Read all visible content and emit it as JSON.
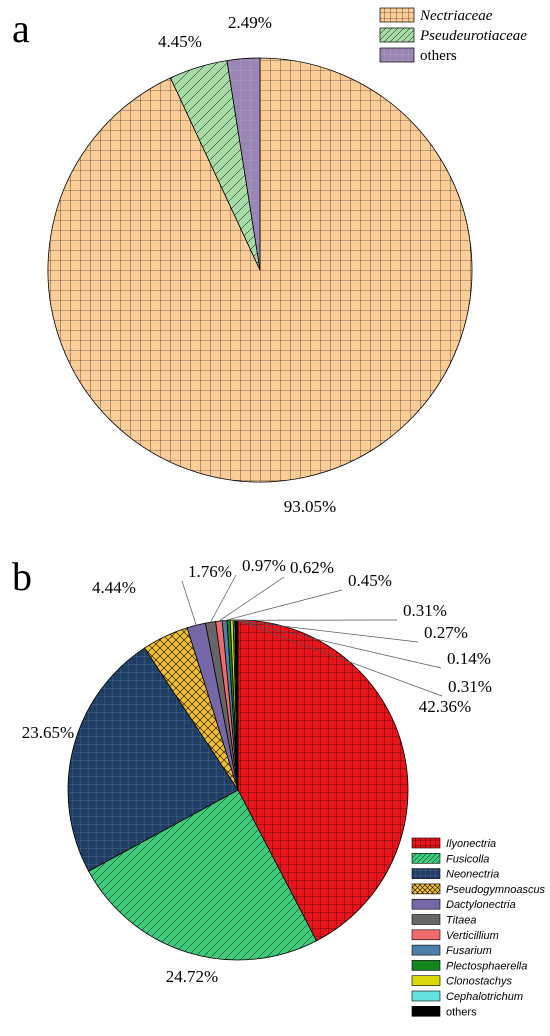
{
  "panels": {
    "a": {
      "letter": "a"
    },
    "b": {
      "letter": "b"
    }
  },
  "chart_data": [
    {
      "type": "pie",
      "panel": "a",
      "title": "",
      "start": "12 o'clock, clockwise",
      "legend_placement": "top-right",
      "slices": [
        {
          "name": "Nectriaceae",
          "value": 93.05,
          "label": "93.05%",
          "color": "#fdcd98",
          "pattern": "grid",
          "italic": true
        },
        {
          "name": "Pseudeurotiaceae",
          "value": 4.45,
          "label": "4.45%",
          "color": "#a6dba6",
          "pattern": "diagonal",
          "italic": true
        },
        {
          "name": "others",
          "value": 2.49,
          "label": "2.49%",
          "color": "#9a86b4",
          "pattern": "dots",
          "italic": false
        }
      ]
    },
    {
      "type": "pie",
      "panel": "b",
      "title": "",
      "start": "12 o'clock, clockwise",
      "legend_placement": "bottom-right",
      "slices": [
        {
          "name": "Ilyonectria",
          "value": 42.36,
          "label": "42.36%",
          "color": "#e8141c",
          "pattern": "grid",
          "italic": true
        },
        {
          "name": "Fusicolla",
          "value": 24.72,
          "label": "24.72%",
          "color": "#3bcb7a",
          "pattern": "diagonal",
          "italic": true
        },
        {
          "name": "Neonectria",
          "value": 23.65,
          "label": "23.65%",
          "color": "#1f3e66",
          "pattern": "dots",
          "italic": true
        },
        {
          "name": "Pseudogymnoascus",
          "value": 4.44,
          "label": "4.44%",
          "color": "#f2c02e",
          "pattern": "crosshatch",
          "italic": true
        },
        {
          "name": "Dactylonectria",
          "value": 1.76,
          "label": "1.76%",
          "color": "#7567a8",
          "pattern": "none",
          "italic": true
        },
        {
          "name": "Titaea",
          "value": 0.97,
          "label": "0.97%",
          "color": "#666666",
          "pattern": "none",
          "italic": true
        },
        {
          "name": "Verticillium",
          "value": 0.62,
          "label": "0.62%",
          "color": "#ef6b6b",
          "pattern": "none",
          "italic": true
        },
        {
          "name": "Fusarium",
          "value": 0.45,
          "label": "0.45%",
          "color": "#4d7ea8",
          "pattern": "none",
          "italic": true
        },
        {
          "name": "Plectosphaerella",
          "value": 0.31,
          "label": "0.31%",
          "color": "#14861f",
          "pattern": "none",
          "italic": true
        },
        {
          "name": "Clonostachys",
          "value": 0.27,
          "label": "0.27%",
          "color": "#d8d80a",
          "pattern": "none",
          "italic": true
        },
        {
          "name": "Cephalotrichum",
          "value": 0.14,
          "label": "0.14%",
          "color": "#67e0e0",
          "pattern": "none",
          "italic": true
        },
        {
          "name": "others",
          "value": 0.31,
          "label": "0.31%",
          "color": "#000000",
          "pattern": "none",
          "italic": false
        }
      ]
    }
  ]
}
